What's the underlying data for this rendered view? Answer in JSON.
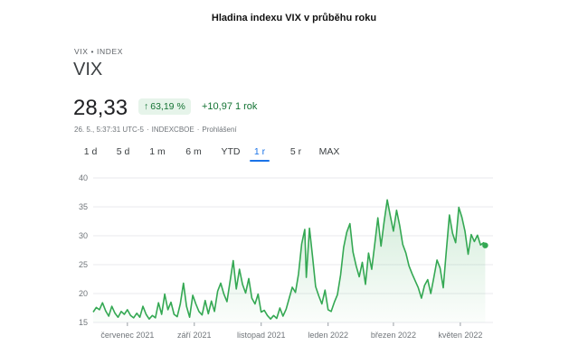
{
  "caption": "Hladina indexu VIX v průběhu roku",
  "header": {
    "breadcrumb": "VIX • INDEX",
    "ticker": "VIX",
    "price": "28,33",
    "percent_change": "63,19 %",
    "percent_arrow": "↑",
    "abs_change": "+10,97",
    "abs_range": "1 rok",
    "meta_time": "26. 5., 5:37:31 UTC-5",
    "meta_exchange": "INDEXCBOE",
    "meta_disclaimer": "Prohlášení"
  },
  "tabs": [
    {
      "label": "1 d",
      "active": false
    },
    {
      "label": "5 d",
      "active": false
    },
    {
      "label": "1 m",
      "active": false
    },
    {
      "label": "6 m",
      "active": false
    },
    {
      "label": "YTD",
      "active": false
    },
    {
      "label": "1 r",
      "active": true
    },
    {
      "label": "5 r",
      "active": false
    },
    {
      "label": "MAX",
      "active": false
    }
  ],
  "colors": {
    "line": "#34a853",
    "fill": "#e6f4ea",
    "grid": "#e8eaed",
    "accent": "#1a73e8",
    "positive": "#137333"
  },
  "chart_data": {
    "type": "area",
    "title": "Hladina indexu VIX v průběhu roku",
    "y_ticks": [
      15,
      20,
      25,
      30,
      35,
      40
    ],
    "ylim": [
      15,
      40
    ],
    "x_ticks": [
      {
        "label": "červenec 2021",
        "x": 22
      },
      {
        "label": "září 2021",
        "x": 65
      },
      {
        "label": "listopad 2021",
        "x": 108
      },
      {
        "label": "leden 2022",
        "x": 151
      },
      {
        "label": "březen 2022",
        "x": 193
      },
      {
        "label": "květen 2022",
        "x": 236
      }
    ],
    "x_range": [
      0,
      257
    ],
    "grid": "horizontal",
    "series": [
      {
        "values": [
          [
            0,
            16.8
          ],
          [
            2,
            17.6
          ],
          [
            4,
            17.2
          ],
          [
            6,
            18.4
          ],
          [
            8,
            17.0
          ],
          [
            10,
            16.1
          ],
          [
            12,
            17.8
          ],
          [
            14,
            16.6
          ],
          [
            16,
            15.9
          ],
          [
            18,
            16.9
          ],
          [
            20,
            16.4
          ],
          [
            22,
            17.2
          ],
          [
            24,
            16.2
          ],
          [
            26,
            15.8
          ],
          [
            28,
            16.6
          ],
          [
            30,
            15.9
          ],
          [
            32,
            17.8
          ],
          [
            34,
            16.4
          ],
          [
            36,
            15.6
          ],
          [
            38,
            16.2
          ],
          [
            40,
            15.8
          ],
          [
            42,
            18.4
          ],
          [
            44,
            16.4
          ],
          [
            46,
            19.9
          ],
          [
            48,
            17.2
          ],
          [
            50,
            18.5
          ],
          [
            52,
            16.4
          ],
          [
            54,
            16.0
          ],
          [
            56,
            18.2
          ],
          [
            58,
            21.8
          ],
          [
            60,
            17.8
          ],
          [
            62,
            15.9
          ],
          [
            64,
            19.7
          ],
          [
            66,
            18.2
          ],
          [
            68,
            16.9
          ],
          [
            70,
            16.3
          ],
          [
            72,
            18.8
          ],
          [
            74,
            16.5
          ],
          [
            76,
            18.7
          ],
          [
            78,
            16.9
          ],
          [
            80,
            20.4
          ],
          [
            82,
            21.8
          ],
          [
            84,
            19.9
          ],
          [
            86,
            18.6
          ],
          [
            88,
            22.1
          ],
          [
            90,
            25.7
          ],
          [
            92,
            20.8
          ],
          [
            94,
            24.2
          ],
          [
            96,
            21.6
          ],
          [
            98,
            20.1
          ],
          [
            100,
            22.6
          ],
          [
            102,
            19.2
          ],
          [
            104,
            18.2
          ],
          [
            106,
            19.9
          ],
          [
            108,
            16.8
          ],
          [
            110,
            17.1
          ],
          [
            112,
            16.2
          ],
          [
            114,
            15.6
          ],
          [
            116,
            16.2
          ],
          [
            118,
            15.7
          ],
          [
            120,
            17.5
          ],
          [
            122,
            16.1
          ],
          [
            124,
            17.3
          ],
          [
            126,
            19.2
          ],
          [
            128,
            21.1
          ],
          [
            130,
            20.2
          ],
          [
            132,
            23.4
          ],
          [
            134,
            28.6
          ],
          [
            136,
            31.1
          ],
          [
            137,
            22.8
          ],
          [
            139,
            31.3
          ],
          [
            141,
            26.4
          ],
          [
            143,
            21.2
          ],
          [
            145,
            19.6
          ],
          [
            147,
            18.2
          ],
          [
            149,
            20.6
          ],
          [
            151,
            17.2
          ],
          [
            153,
            16.9
          ],
          [
            155,
            18.5
          ],
          [
            157,
            19.8
          ],
          [
            159,
            23.2
          ],
          [
            161,
            28.0
          ],
          [
            163,
            30.6
          ],
          [
            165,
            32.1
          ],
          [
            167,
            27.2
          ],
          [
            169,
            24.8
          ],
          [
            171,
            22.9
          ],
          [
            173,
            25.4
          ],
          [
            175,
            21.6
          ],
          [
            177,
            27.0
          ],
          [
            179,
            24.2
          ],
          [
            181,
            28.6
          ],
          [
            183,
            33.1
          ],
          [
            185,
            28.2
          ],
          [
            187,
            32.4
          ],
          [
            189,
            36.2
          ],
          [
            191,
            33.4
          ],
          [
            193,
            30.8
          ],
          [
            195,
            34.4
          ],
          [
            197,
            31.8
          ],
          [
            199,
            28.5
          ],
          [
            201,
            27.0
          ],
          [
            203,
            24.8
          ],
          [
            205,
            23.4
          ],
          [
            207,
            22.2
          ],
          [
            209,
            21.0
          ],
          [
            211,
            19.2
          ],
          [
            213,
            21.4
          ],
          [
            215,
            22.4
          ],
          [
            217,
            20.0
          ],
          [
            219,
            22.8
          ],
          [
            221,
            25.8
          ],
          [
            223,
            24.4
          ],
          [
            225,
            21.0
          ],
          [
            227,
            27.4
          ],
          [
            229,
            33.6
          ],
          [
            231,
            30.4
          ],
          [
            233,
            28.8
          ],
          [
            235,
            34.9
          ],
          [
            237,
            33.2
          ],
          [
            239,
            30.8
          ],
          [
            241,
            26.8
          ],
          [
            243,
            30.2
          ],
          [
            245,
            29.0
          ],
          [
            247,
            30.1
          ],
          [
            249,
            28.4
          ],
          [
            251,
            28.8
          ],
          [
            252,
            28.33
          ]
        ]
      }
    ]
  }
}
